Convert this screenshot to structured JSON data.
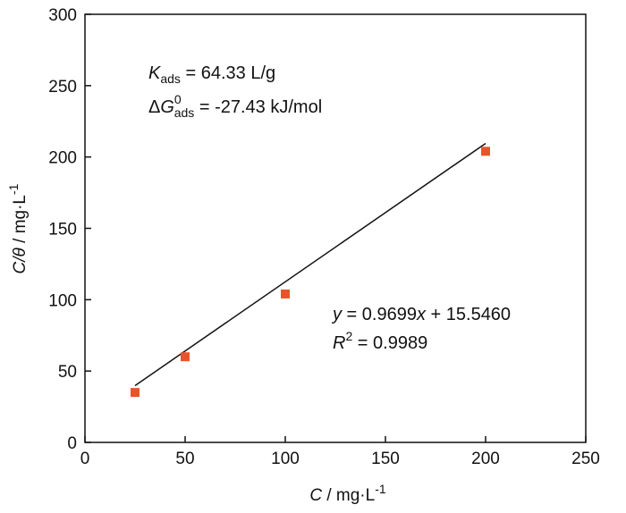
{
  "chart_data": {
    "type": "scatter",
    "title": "",
    "x": [
      25,
      50,
      100,
      200
    ],
    "y": [
      35,
      60,
      104,
      204
    ],
    "xlim": [
      0,
      250
    ],
    "ylim": [
      0,
      300
    ],
    "xticks": [
      0,
      50,
      100,
      150,
      200,
      250
    ],
    "yticks": [
      0,
      50,
      100,
      150,
      200,
      250,
      300
    ],
    "grid": false,
    "marker_color": "#e8542a",
    "line_color": "#111111",
    "fit": {
      "slope": 0.9699,
      "intercept": 15.546,
      "x_range": [
        25,
        200
      ]
    },
    "xlabel": {
      "var": "C",
      "unit": " / mg·L",
      "unit_sup": "-1"
    },
    "ylabel": {
      "var": "C/θ",
      "unit": " / mg·L",
      "unit_sup": "-1"
    },
    "annotations": {
      "kads": {
        "var": "K",
        "sub": "ads",
        "rest": " = 64.33 L/g"
      },
      "dg": {
        "prefix": "Δ",
        "var": "G",
        "sup": "0",
        "sub": "ads",
        "rest": " = -27.43 kJ/mol"
      },
      "equation": {
        "y": "y",
        "mid": " = 0.9699",
        "x": "x",
        "rest": " + 15.5460"
      },
      "r2": {
        "var": "R",
        "sup": "2",
        "rest": " = 0.9989"
      }
    }
  }
}
